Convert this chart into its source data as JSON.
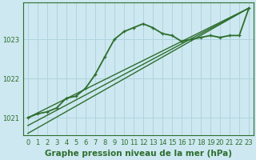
{
  "xlabel": "Graphe pression niveau de la mer (hPa)",
  "ylabel": "",
  "background_color": "#cde8f0",
  "plot_bg_color": "#cde8f0",
  "grid_color": "#b0d4de",
  "line_color": "#2d6e2d",
  "text_color": "#2d6e2d",
  "xlim": [
    -0.5,
    23.5
  ],
  "ylim": [
    1020.55,
    1023.95
  ],
  "yticks": [
    1021,
    1022,
    1023
  ],
  "xticks": [
    0,
    1,
    2,
    3,
    4,
    5,
    6,
    7,
    8,
    9,
    10,
    11,
    12,
    13,
    14,
    15,
    16,
    17,
    18,
    19,
    20,
    21,
    22,
    23
  ],
  "series": [
    {
      "x": [
        0,
        1,
        2,
        3,
        4,
        5,
        6,
        7,
        8,
        9,
        10,
        11,
        12,
        13,
        14,
        15,
        16,
        17,
        18,
        19,
        20,
        21,
        22,
        23
      ],
      "y": [
        1021.0,
        1021.1,
        1021.15,
        1021.25,
        1021.5,
        1021.55,
        1021.75,
        1022.1,
        1022.55,
        1023.0,
        1023.2,
        1023.3,
        1023.4,
        1023.3,
        1023.15,
        1023.1,
        1022.95,
        1023.0,
        1023.05,
        1023.1,
        1023.05,
        1023.1,
        1023.1,
        1023.8
      ],
      "marker": true,
      "linewidth": 1.3
    },
    {
      "x": [
        0,
        23
      ],
      "y": [
        1021.0,
        1023.8
      ],
      "marker": false,
      "linewidth": 1.0
    },
    {
      "x": [
        0,
        23
      ],
      "y": [
        1020.8,
        1023.8
      ],
      "marker": false,
      "linewidth": 1.0
    },
    {
      "x": [
        0,
        23
      ],
      "y": [
        1020.6,
        1023.8
      ],
      "marker": false,
      "linewidth": 1.0
    }
  ],
  "tick_fontsize": 6.0,
  "xlabel_fontsize": 7.5,
  "xlabel_bold": true
}
